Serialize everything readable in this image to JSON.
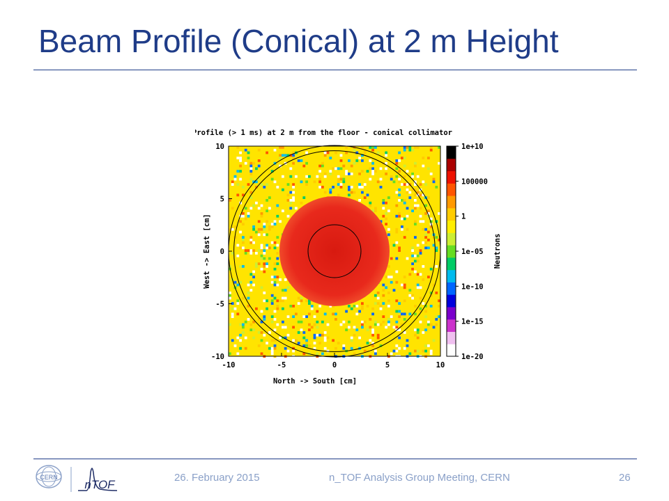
{
  "slide": {
    "title": "Beam Profile (Conical) at 2 m Height"
  },
  "footer": {
    "date": "26. February 2015",
    "meeting": "n_TOF Analysis Group Meeting, CERN",
    "page_number": "26",
    "logo_cern": "CERN",
    "logo_ntof": "nTOF"
  },
  "chart_data": {
    "type": "heatmap",
    "title": "Profile (> 1 ms) at 2 m from the floor - conical collimator",
    "xlabel": "North -> South [cm]",
    "ylabel": "West -> East [cm]",
    "zlabel": "Neutrons",
    "xlim": [
      -10,
      10
    ],
    "ylim": [
      -10,
      10
    ],
    "x_ticks": [
      "-10",
      "-5",
      "0",
      "5",
      "10"
    ],
    "y_ticks": [
      "10",
      "5",
      "0",
      "-5",
      "-10"
    ],
    "colorbar": {
      "scale": "log",
      "ticks": [
        "1e+10",
        "100000",
        "1",
        "1e-05",
        "1e-10",
        "1e-15",
        "1e-20"
      ],
      "range": [
        1e-20,
        10000000000.0
      ],
      "colors": [
        "#ffffff",
        "#f0c0f0",
        "#cc33cc",
        "#7a00cc",
        "#0000dd",
        "#0066ff",
        "#00bbee",
        "#00cc66",
        "#66dd22",
        "#ccee33",
        "#ffee00",
        "#ffcc00",
        "#ff9900",
        "#ff5500",
        "#ee1100",
        "#aa0000",
        "#000000"
      ]
    },
    "beam_spot": {
      "center": [
        0,
        0
      ],
      "radius_cm": 5.2,
      "level": "~1e+08",
      "color": "#e8291c"
    },
    "background": {
      "level": "~1",
      "color": "#ffe400"
    },
    "circles_cm": [
      2.5,
      9.5,
      10
    ]
  }
}
